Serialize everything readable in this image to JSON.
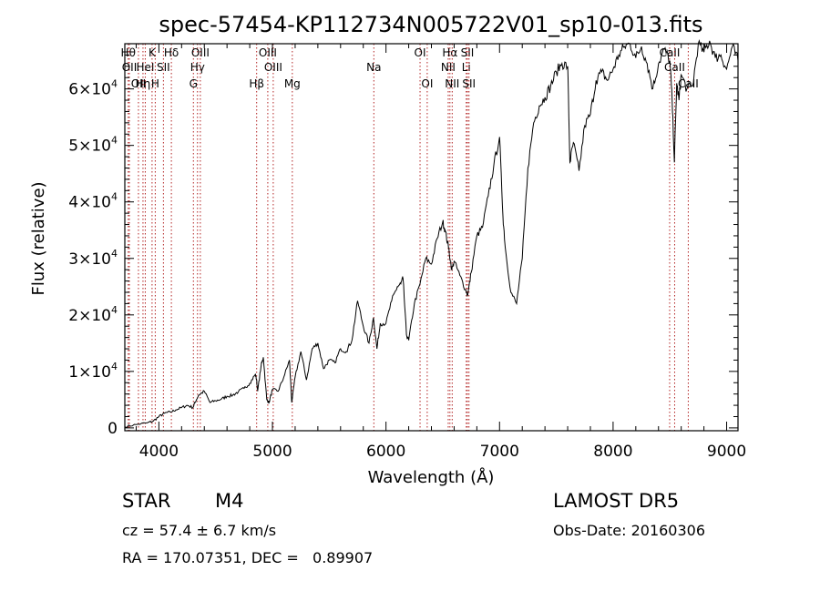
{
  "chart_data": {
    "type": "line",
    "title": "spec-57454-KP112734N005722V01_sp10-013.fits",
    "xlabel": "Wavelength (Å)",
    "ylabel": "Flux (relative)",
    "xlim": [
      3700,
      9100
    ],
    "ylim": [
      -500,
      68000
    ],
    "x_ticks": [
      {
        "value": 4000,
        "label": "4000"
      },
      {
        "value": 5000,
        "label": "5000"
      },
      {
        "value": 6000,
        "label": "6000"
      },
      {
        "value": 7000,
        "label": "7000"
      },
      {
        "value": 8000,
        "label": "8000"
      },
      {
        "value": 9000,
        "label": "9000"
      }
    ],
    "y_ticks": [
      {
        "value": 0,
        "mant": "0",
        "exp": ""
      },
      {
        "value": 10000,
        "mant": "1×10",
        "exp": "4"
      },
      {
        "value": 20000,
        "mant": "2×10",
        "exp": "4"
      },
      {
        "value": 30000,
        "mant": "3×10",
        "exp": "4"
      },
      {
        "value": 40000,
        "mant": "4×10",
        "exp": "4"
      },
      {
        "value": 50000,
        "mant": "5×10",
        "exp": "4"
      },
      {
        "value": 60000,
        "mant": "6×10",
        "exp": "4"
      }
    ],
    "grid": false,
    "line_color": "#000000",
    "marker_color": "#b22222",
    "spectrum": {
      "x": [
        3700,
        3800,
        3900,
        3950,
        4000,
        4050,
        4100,
        4150,
        4200,
        4250,
        4300,
        4320,
        4350,
        4400,
        4450,
        4500,
        4550,
        4600,
        4650,
        4700,
        4750,
        4800,
        4850,
        4860,
        4870,
        4900,
        4920,
        4950,
        4970,
        5000,
        5050,
        5100,
        5150,
        5170,
        5200,
        5250,
        5300,
        5350,
        5400,
        5450,
        5500,
        5550,
        5600,
        5650,
        5700,
        5750,
        5800,
        5850,
        5890,
        5920,
        5950,
        6000,
        6050,
        6100,
        6130,
        6150,
        6180,
        6200,
        6250,
        6300,
        6350,
        6400,
        6450,
        6500,
        6520,
        6550,
        6580,
        6600,
        6650,
        6700,
        6720,
        6750,
        6800,
        6850,
        6900,
        6950,
        7000,
        7030,
        7050,
        7100,
        7150,
        7200,
        7250,
        7300,
        7350,
        7400,
        7450,
        7500,
        7550,
        7600,
        7620,
        7650,
        7700,
        7750,
        7800,
        7850,
        7900,
        7950,
        8000,
        8050,
        8100,
        8150,
        8200,
        8250,
        8300,
        8350,
        8400,
        8450,
        8500,
        8520,
        8540,
        8560,
        8580,
        8600,
        8650,
        8700,
        8750,
        8800,
        8850,
        8900,
        8950,
        9000,
        9050,
        9100
      ],
      "y": [
        200,
        600,
        900,
        1200,
        2000,
        2600,
        2800,
        3200,
        3600,
        4000,
        3600,
        4600,
        5800,
        6500,
        4500,
        4800,
        5100,
        5600,
        5800,
        6400,
        7000,
        7900,
        9500,
        8500,
        6500,
        11000,
        12500,
        5000,
        4500,
        6800,
        6500,
        9000,
        12000,
        4500,
        9000,
        13500,
        8500,
        14000,
        15000,
        10500,
        12000,
        11500,
        14000,
        13500,
        15500,
        22500,
        18000,
        15000,
        19500,
        14000,
        18500,
        18500,
        22500,
        25000,
        25500,
        26500,
        16500,
        15500,
        22000,
        25500,
        30000,
        29000,
        33500,
        36500,
        35000,
        32000,
        28000,
        29500,
        27000,
        24500,
        23500,
        27500,
        34000,
        35500,
        41000,
        46500,
        51500,
        37500,
        32000,
        24000,
        22000,
        30000,
        46000,
        54000,
        57000,
        58500,
        60500,
        63000,
        64500,
        64000,
        47000,
        50500,
        45500,
        53500,
        55500,
        61500,
        63000,
        61500,
        63500,
        66000,
        67500,
        68000,
        65500,
        67500,
        64500,
        60000,
        64500,
        67000,
        65000,
        58000,
        47000,
        61000,
        58000,
        62500,
        60000,
        60500,
        68000,
        66500,
        68500,
        65500,
        66000,
        63500,
        67500,
        65000
      ]
    },
    "line_markers": [
      {
        "x": 3730,
        "label": "Hθ",
        "row": 1
      },
      {
        "x": 3740,
        "label": "OII",
        "row": 2
      },
      {
        "x": 3820,
        "label": "OII",
        "row": 3
      },
      {
        "x": 3860,
        "label": "Hη",
        "row": 3
      },
      {
        "x": 3880,
        "label": "HeI",
        "row": 2
      },
      {
        "x": 3940,
        "label": "K",
        "row": 1
      },
      {
        "x": 3968,
        "label": "H",
        "row": 3
      },
      {
        "x": 4040,
        "label": "SII",
        "row": 2
      },
      {
        "x": 4110,
        "label": "Hδ",
        "row": 1
      },
      {
        "x": 4304,
        "label": "G",
        "row": 3
      },
      {
        "x": 4340,
        "label": "Hγ",
        "row": 2
      },
      {
        "x": 4365,
        "label": "OIII",
        "row": 1
      },
      {
        "x": 4861,
        "label": "Hβ",
        "row": 3
      },
      {
        "x": 4959,
        "label": "OIII",
        "row": 1
      },
      {
        "x": 5007,
        "label": "OIII",
        "row": 2
      },
      {
        "x": 5175,
        "label": "Mg",
        "row": 3
      },
      {
        "x": 5893,
        "label": "Na",
        "row": 2
      },
      {
        "x": 6300,
        "label": "OI",
        "row": 1
      },
      {
        "x": 6363,
        "label": "OI",
        "row": 3
      },
      {
        "x": 6548,
        "label": "NII",
        "row": 2
      },
      {
        "x": 6563,
        "label": "Hα",
        "row": 1
      },
      {
        "x": 6583,
        "label": "NII",
        "row": 3
      },
      {
        "x": 6707,
        "label": "Li",
        "row": 2
      },
      {
        "x": 6717,
        "label": "SII",
        "row": 1
      },
      {
        "x": 6731,
        "label": "SII",
        "row": 3
      },
      {
        "x": 8498,
        "label": "CaII",
        "row": 1
      },
      {
        "x": 8542,
        "label": "CaII",
        "row": 2
      },
      {
        "x": 8662,
        "label": "CaII",
        "row": 3
      }
    ]
  },
  "info": {
    "class_label": "STAR",
    "subclass": "M4",
    "cz": "cz = 57.4 ± 6.7 km/s",
    "radec": "RA = 170.07351, DEC =   0.89907",
    "survey": "LAMOST DR5",
    "obs_date": "Obs-Date: 20160306"
  }
}
